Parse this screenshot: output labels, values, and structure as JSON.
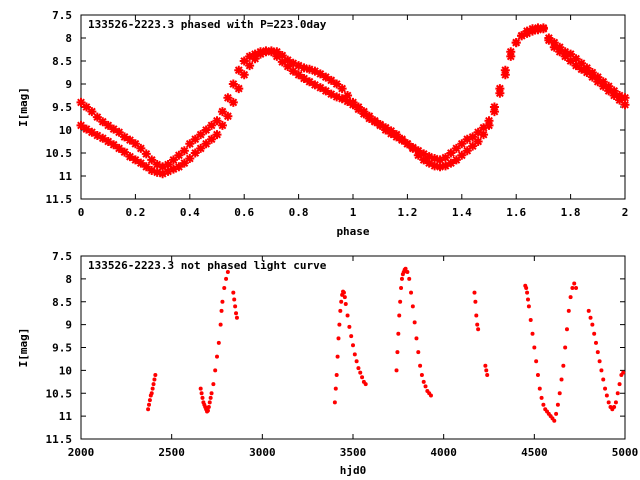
{
  "chart_data": [
    {
      "type": "scatter",
      "title": "133526-2223.3 phased with P=223.0day",
      "xlabel": "phase",
      "ylabel": "I[mag]",
      "xlim": [
        0,
        2
      ],
      "ylim": [
        11.5,
        7.5
      ],
      "y_inverted": true,
      "xticks": [
        "0",
        "0.2",
        "0.4",
        "0.6",
        "0.8",
        "1",
        "1.2",
        "1.4",
        "1.6",
        "1.8",
        "2"
      ],
      "yticks": [
        "7.5",
        "8",
        "8.5",
        "9",
        "9.5",
        "10",
        "10.5",
        "11",
        "11.5"
      ],
      "marker": "star",
      "color": "#ff0000",
      "grid": false,
      "series": [
        {
          "x": [
            0.0,
            0.02,
            0.04,
            0.06,
            0.08,
            0.1,
            0.12,
            0.14,
            0.16,
            0.18,
            0.2,
            0.22,
            0.24,
            0.26,
            0.28,
            0.3,
            0.32,
            0.34,
            0.36,
            0.38,
            0.4,
            0.42,
            0.44,
            0.46,
            0.48,
            0.5,
            0.52,
            0.54,
            0.56,
            0.58,
            0.6,
            0.62,
            0.64,
            0.66,
            0.68,
            0.7,
            0.72,
            0.74,
            0.76,
            0.78,
            0.8,
            0.82,
            0.84,
            0.86,
            0.88,
            0.9,
            0.92,
            0.94,
            0.96,
            0.98,
            1.0,
            1.02,
            1.04,
            1.06,
            1.08,
            1.1,
            1.12,
            1.14,
            1.16,
            1.18,
            1.2,
            1.22,
            1.24,
            1.26,
            1.28,
            1.3,
            1.32,
            1.34,
            1.36,
            1.38,
            1.4,
            1.42,
            1.44,
            1.46,
            1.48,
            1.5,
            1.52,
            1.54,
            1.56,
            1.58,
            1.6,
            1.62,
            1.64,
            1.66,
            1.68,
            1.7,
            1.72,
            1.74,
            1.76,
            1.78,
            1.8,
            1.82,
            1.84,
            1.86,
            1.88,
            1.9,
            1.92,
            1.94,
            1.96,
            1.98,
            2.0
          ],
          "y": [
            9.9,
            9.98,
            10.05,
            10.12,
            10.18,
            10.25,
            10.32,
            10.4,
            10.48,
            10.58,
            10.65,
            10.72,
            10.8,
            10.88,
            10.92,
            10.95,
            10.9,
            10.85,
            10.8,
            10.72,
            10.62,
            10.5,
            10.4,
            10.3,
            10.2,
            10.1,
            9.9,
            9.7,
            9.4,
            9.1,
            8.8,
            8.6,
            8.45,
            8.35,
            8.3,
            8.28,
            8.3,
            8.38,
            8.48,
            8.55,
            8.6,
            8.65,
            8.68,
            8.72,
            8.78,
            8.85,
            8.92,
            9.0,
            9.1,
            9.25,
            9.4,
            9.5,
            9.6,
            9.7,
            9.8,
            9.88,
            9.95,
            10.02,
            10.1,
            10.2,
            10.3,
            10.4,
            10.55,
            10.65,
            10.72,
            10.78,
            10.8,
            10.78,
            10.72,
            10.65,
            10.55,
            10.45,
            10.35,
            10.25,
            10.1,
            9.9,
            9.6,
            9.2,
            8.8,
            8.4,
            8.1,
            7.95,
            7.85,
            7.8,
            7.78,
            7.78,
            8.05,
            8.2,
            8.3,
            8.4,
            8.5,
            8.6,
            8.68,
            8.75,
            8.85,
            8.95,
            9.05,
            9.15,
            9.25,
            9.35,
            9.45
          ]
        },
        {
          "x": [
            0.0,
            0.02,
            0.04,
            0.06,
            0.08,
            0.1,
            0.12,
            0.14,
            0.16,
            0.18,
            0.2,
            0.22,
            0.24,
            0.26,
            0.28,
            0.3,
            0.32,
            0.34,
            0.36,
            0.38,
            0.4,
            0.42,
            0.44,
            0.46,
            0.48,
            0.5,
            0.52,
            0.54,
            0.56,
            0.58,
            0.6,
            0.62,
            0.64,
            0.66,
            0.68,
            0.7,
            0.72,
            0.74,
            0.76,
            0.78,
            0.8,
            0.82,
            0.84,
            0.86,
            0.88,
            0.9,
            0.92,
            0.94,
            0.96,
            0.98,
            1.0,
            1.02,
            1.04,
            1.06,
            1.08,
            1.1,
            1.12,
            1.14,
            1.16,
            1.18,
            1.2,
            1.22,
            1.24,
            1.26,
            1.28,
            1.3,
            1.32,
            1.34,
            1.36,
            1.38,
            1.4,
            1.42,
            1.44,
            1.46,
            1.48,
            1.5,
            1.52,
            1.54,
            1.56,
            1.58,
            1.6,
            1.62,
            1.64,
            1.66,
            1.68,
            1.7,
            1.72,
            1.74,
            1.76,
            1.78,
            1.8,
            1.82,
            1.84,
            1.86,
            1.88,
            1.9,
            1.92,
            1.94,
            1.96,
            1.98,
            2.0
          ],
          "y": [
            9.4,
            9.5,
            9.6,
            9.72,
            9.82,
            9.9,
            9.98,
            10.05,
            10.15,
            10.22,
            10.3,
            10.4,
            10.52,
            10.65,
            10.75,
            10.8,
            10.75,
            10.65,
            10.55,
            10.45,
            10.3,
            10.2,
            10.1,
            10.0,
            9.9,
            9.8,
            9.6,
            9.3,
            9.0,
            8.7,
            8.5,
            8.4,
            8.35,
            8.3,
            8.28,
            8.3,
            8.4,
            8.52,
            8.62,
            8.72,
            8.8,
            8.88,
            8.95,
            9.02,
            9.08,
            9.15,
            9.22,
            9.28,
            9.32,
            9.38,
            9.45,
            9.55,
            9.65,
            9.75,
            9.82,
            9.9,
            10.0,
            10.08,
            10.15,
            10.22,
            10.3,
            10.38,
            10.45,
            10.52,
            10.58,
            10.62,
            10.65,
            10.6,
            10.5,
            10.4,
            10.3,
            10.2,
            10.15,
            10.05,
            9.95,
            9.8,
            9.5,
            9.1,
            8.7,
            8.3,
            8.1,
            7.95,
            7.9,
            7.85,
            7.82,
            7.8,
            8.0,
            8.1,
            8.2,
            8.3,
            8.35,
            8.45,
            8.55,
            8.65,
            8.75,
            8.85,
            8.95,
            9.05,
            9.15,
            9.25,
            9.3
          ]
        }
      ]
    },
    {
      "type": "scatter",
      "title": "133526-2223.3 not phased light curve",
      "xlabel": "hjd0",
      "ylabel": "I[mag]",
      "xlim": [
        2000,
        5000
      ],
      "ylim": [
        11.5,
        7.5
      ],
      "y_inverted": true,
      "xticks": [
        "2000",
        "2500",
        "3000",
        "3500",
        "4000",
        "4500",
        "5000"
      ],
      "yticks": [
        "7.5",
        "8",
        "8.5",
        "9",
        "9.5",
        "10",
        "10.5",
        "11",
        "11.5"
      ],
      "marker": "dot",
      "color": "#ff0000",
      "grid": false,
      "series": [
        {
          "x": [
            2370,
            2375,
            2380,
            2385,
            2390,
            2395,
            2400,
            2405,
            2410,
            2660,
            2665,
            2670,
            2675,
            2680,
            2685,
            2690,
            2695,
            2700,
            2705,
            2710,
            2715,
            2720,
            2730,
            2740,
            2750,
            2760,
            2770,
            2775,
            2780,
            2790,
            2800,
            2810,
            2840,
            2845,
            2850,
            2855,
            2860,
            3400,
            3405,
            3410,
            3415,
            3420,
            3425,
            3430,
            3435,
            3440,
            3445,
            3450,
            3455,
            3460,
            3470,
            3480,
            3490,
            3500,
            3510,
            3520,
            3530,
            3540,
            3550,
            3560,
            3570,
            3740,
            3745,
            3750,
            3755,
            3760,
            3765,
            3770,
            3775,
            3780,
            3785,
            3790,
            3800,
            3810,
            3820,
            3830,
            3840,
            3850,
            3860,
            3870,
            3880,
            3890,
            3900,
            3910,
            3920,
            3930,
            4170,
            4175,
            4180,
            4185,
            4190,
            4230,
            4235,
            4240,
            4450,
            4455,
            4460,
            4465,
            4470,
            4480,
            4490,
            4500,
            4510,
            4520,
            4530,
            4540,
            4550,
            4560,
            4570,
            4580,
            4590,
            4600,
            4610,
            4620,
            4630,
            4640,
            4650,
            4660,
            4670,
            4680,
            4690,
            4700,
            4710,
            4720,
            4730,
            4800,
            4810,
            4820,
            4830,
            4840,
            4850,
            4860,
            4870,
            4880,
            4890,
            4900,
            4910,
            4920,
            4930,
            4940,
            4950,
            4960,
            4970,
            4980,
            4990
          ],
          "y": [
            10.85,
            10.75,
            10.65,
            10.55,
            10.5,
            10.4,
            10.3,
            10.2,
            10.1,
            10.4,
            10.5,
            10.6,
            10.7,
            10.75,
            10.8,
            10.85,
            10.9,
            10.88,
            10.8,
            10.7,
            10.6,
            10.5,
            10.3,
            10.0,
            9.7,
            9.4,
            9.0,
            8.7,
            8.5,
            8.2,
            8.0,
            7.85,
            8.3,
            8.45,
            8.6,
            8.75,
            8.85,
            10.7,
            10.4,
            10.1,
            9.7,
            9.3,
            9.0,
            8.7,
            8.5,
            8.35,
            8.28,
            8.3,
            8.4,
            8.55,
            8.8,
            9.05,
            9.25,
            9.45,
            9.65,
            9.8,
            9.95,
            10.05,
            10.15,
            10.25,
            10.3,
            10.0,
            9.6,
            9.2,
            8.8,
            8.5,
            8.2,
            8.0,
            7.9,
            7.85,
            7.8,
            7.78,
            7.85,
            8.0,
            8.3,
            8.6,
            8.95,
            9.3,
            9.6,
            9.9,
            10.1,
            10.25,
            10.35,
            10.45,
            10.5,
            10.55,
            8.3,
            8.5,
            8.8,
            9.0,
            9.1,
            9.9,
            10.0,
            10.1,
            8.15,
            8.2,
            8.3,
            8.45,
            8.6,
            8.9,
            9.2,
            9.5,
            9.8,
            10.1,
            10.4,
            10.6,
            10.75,
            10.85,
            10.9,
            10.95,
            11.0,
            11.05,
            11.1,
            10.95,
            10.75,
            10.5,
            10.2,
            9.9,
            9.5,
            9.1,
            8.7,
            8.4,
            8.2,
            8.1,
            8.2,
            8.7,
            8.85,
            9.0,
            9.2,
            9.4,
            9.6,
            9.8,
            10.0,
            10.2,
            10.4,
            10.55,
            10.7,
            10.8,
            10.85,
            10.8,
            10.7,
            10.5,
            10.3,
            10.1,
            10.05
          ]
        }
      ]
    }
  ]
}
